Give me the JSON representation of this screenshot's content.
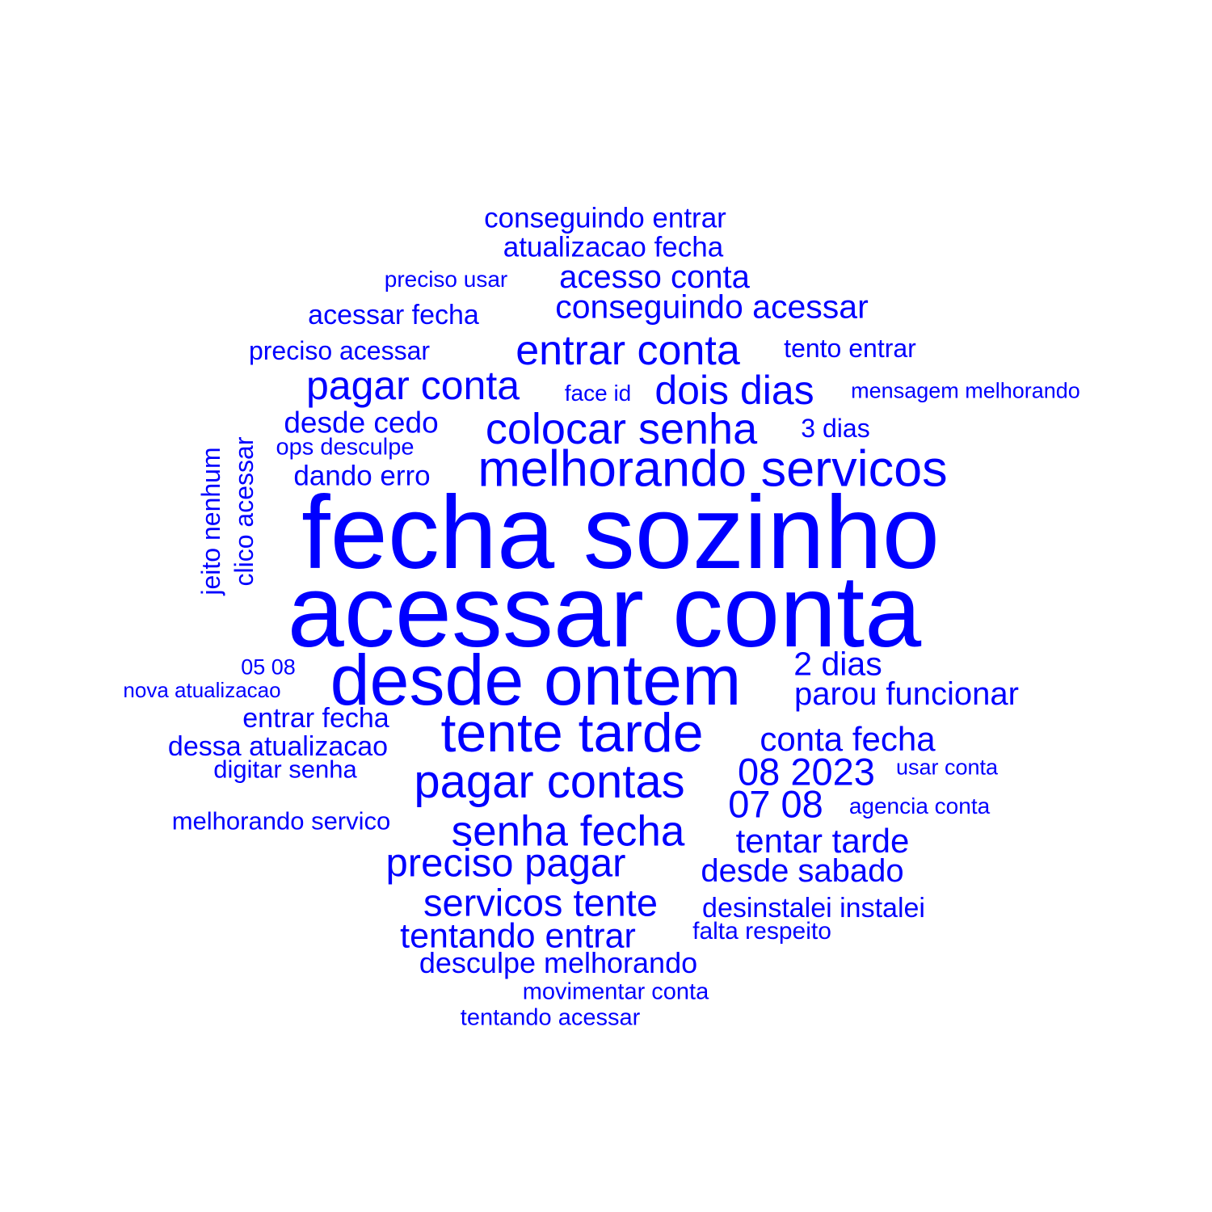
{
  "word_color": "#0000ff",
  "words": [
    {
      "text": "fecha sozinho"
    },
    {
      "text": "acessar conta"
    },
    {
      "text": "desde ontem"
    },
    {
      "text": "melhorando servicos"
    },
    {
      "text": "tente tarde"
    },
    {
      "text": "pagar contas"
    },
    {
      "text": "entrar conta"
    },
    {
      "text": "colocar senha"
    },
    {
      "text": "senha fecha"
    },
    {
      "text": "pagar conta"
    },
    {
      "text": "dois dias"
    },
    {
      "text": "preciso pagar"
    },
    {
      "text": "servicos tente"
    },
    {
      "text": "08 2023"
    },
    {
      "text": "07 08"
    },
    {
      "text": "tentando entrar"
    },
    {
      "text": "conseguindo acessar"
    },
    {
      "text": "tentar tarde"
    },
    {
      "text": "conta fecha"
    },
    {
      "text": "parou funcionar"
    },
    {
      "text": "2 dias"
    },
    {
      "text": "acesso conta"
    },
    {
      "text": "desde sabado"
    },
    {
      "text": "desculpe melhorando"
    },
    {
      "text": "conseguindo entrar"
    },
    {
      "text": "atualizacao fecha"
    },
    {
      "text": "desde cedo"
    },
    {
      "text": "acessar fecha"
    },
    {
      "text": "dando erro"
    },
    {
      "text": "entrar fecha"
    },
    {
      "text": "dessa atualizacao"
    },
    {
      "text": "desinstalei instalei"
    },
    {
      "text": "preciso acessar"
    },
    {
      "text": "tento entrar"
    },
    {
      "text": "3 dias"
    },
    {
      "text": "clico acessar"
    },
    {
      "text": "jeito nenhum"
    },
    {
      "text": "melhorando servico"
    },
    {
      "text": "digitar senha"
    },
    {
      "text": "face id"
    },
    {
      "text": "ops desculpe"
    },
    {
      "text": "falta respeito"
    },
    {
      "text": "movimentar conta"
    },
    {
      "text": "tentando acessar"
    },
    {
      "text": "preciso usar"
    },
    {
      "text": "mensagem melhorando"
    },
    {
      "text": "05 08"
    },
    {
      "text": "nova atualizacao"
    },
    {
      "text": "usar conta"
    },
    {
      "text": "agencia conta"
    }
  ]
}
